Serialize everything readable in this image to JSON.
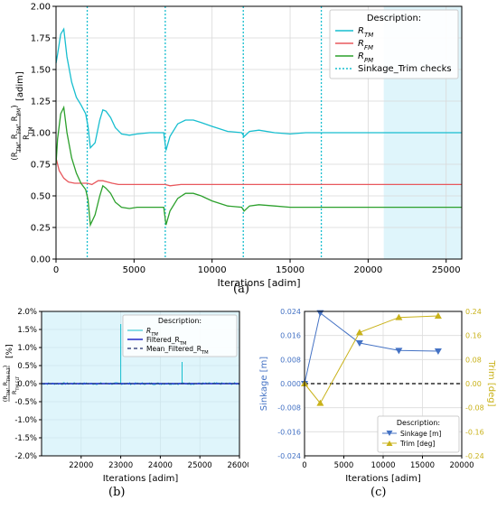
{
  "captions": {
    "a": "(a)",
    "b": "(b)",
    "c": "(c)"
  },
  "colors": {
    "rtm": "#17becf",
    "rfm": "#e8585d",
    "rpm": "#2ca02c",
    "check": "#17becf",
    "shade": "#dff5fb",
    "filtered": "#1f28c8",
    "mean": "#1a2a6c",
    "sinkage": "#4472c4",
    "trim": "#c9b21a"
  },
  "chart_data": [
    {
      "type": "line",
      "title": "",
      "xlabel": "Iterations [adim]",
      "ylabel": "(R_TM, R_FM, R_PM)/R_TM [adim]",
      "xlim": [
        0,
        26000
      ],
      "ylim": [
        0,
        2.0
      ],
      "xticks": [
        0,
        5000,
        10000,
        15000,
        20000,
        25000
      ],
      "yticks": [
        0,
        0.25,
        0.5,
        0.75,
        1.0,
        1.25,
        1.5,
        1.75,
        2.0
      ],
      "grid": true,
      "legend_placement": "top-right",
      "legend_title": "Description:",
      "shaded_x_range": [
        21000,
        26000
      ],
      "vlines": [
        2000,
        7000,
        12000,
        17000
      ],
      "series": [
        {
          "name": "R_TM",
          "x": [
            0,
            100,
            300,
            500,
            700,
            1000,
            1300,
            1600,
            1900,
            2050,
            2200,
            2500,
            2800,
            3000,
            3200,
            3500,
            3800,
            4200,
            4700,
            5200,
            6000,
            6900,
            7050,
            7300,
            7800,
            8300,
            8800,
            9300,
            10000,
            11000,
            11900,
            12050,
            12400,
            13000,
            14000,
            15000,
            16000,
            17000,
            20000,
            26000
          ],
          "y": [
            1.55,
            1.62,
            1.78,
            1.82,
            1.6,
            1.4,
            1.28,
            1.22,
            1.15,
            1.05,
            0.88,
            0.92,
            1.1,
            1.18,
            1.17,
            1.12,
            1.04,
            0.99,
            0.98,
            0.99,
            1.0,
            1.0,
            0.86,
            0.97,
            1.07,
            1.1,
            1.1,
            1.08,
            1.05,
            1.01,
            1.0,
            0.97,
            1.01,
            1.02,
            1.0,
            0.99,
            1.0,
            1.0,
            1.0,
            1.0
          ]
        },
        {
          "name": "R_FM",
          "x": [
            0,
            200,
            500,
            800,
            1200,
            1600,
            2000,
            2300,
            2700,
            3000,
            3300,
            3600,
            4000,
            5000,
            7000,
            7300,
            8000,
            10000,
            12000,
            15000,
            20000,
            26000
          ],
          "y": [
            0.8,
            0.7,
            0.64,
            0.61,
            0.6,
            0.6,
            0.6,
            0.59,
            0.62,
            0.62,
            0.61,
            0.6,
            0.59,
            0.59,
            0.59,
            0.58,
            0.59,
            0.59,
            0.59,
            0.59,
            0.59,
            0.59
          ],
          "note_unused": null
        },
        {
          "name": "R_PM",
          "x": [
            0,
            100,
            300,
            500,
            700,
            1000,
            1300,
            1600,
            1900,
            2050,
            2200,
            2500,
            2800,
            3000,
            3200,
            3500,
            3800,
            4200,
            4700,
            5200,
            6000,
            6900,
            7050,
            7300,
            7800,
            8300,
            8800,
            9300,
            10000,
            11000,
            11900,
            12050,
            12400,
            13000,
            14000,
            15000,
            16000,
            17000,
            20000,
            26000
          ],
          "y": [
            0.75,
            0.95,
            1.15,
            1.2,
            1.0,
            0.8,
            0.68,
            0.6,
            0.55,
            0.47,
            0.27,
            0.35,
            0.5,
            0.58,
            0.56,
            0.52,
            0.45,
            0.41,
            0.4,
            0.41,
            0.41,
            0.41,
            0.27,
            0.38,
            0.48,
            0.52,
            0.52,
            0.5,
            0.46,
            0.42,
            0.41,
            0.38,
            0.42,
            0.43,
            0.42,
            0.41,
            0.41,
            0.41,
            0.41,
            0.41
          ]
        }
      ],
      "legend_entries": [
        "R_TM",
        "R_FM",
        "R_PM",
        "Sinkage_Trim checks"
      ]
    },
    {
      "type": "line",
      "title": "",
      "xlabel": "Iterations [adim]",
      "ylabel": "(R_TM, R_TM-FLT)/R_TM-FLT [%]",
      "xlim": [
        21000,
        26000
      ],
      "ylim": [
        -2.0,
        2.0
      ],
      "xticks": [
        22000,
        23000,
        24000,
        25000,
        26000
      ],
      "yticks": [
        "-2.0%",
        "-1.5%",
        "-1.0%",
        "-0.5%",
        "0.0%",
        "0.5%",
        "1.0%",
        "1.5%",
        "2.0%"
      ],
      "grid": true,
      "legend_placement": "top-center",
      "legend_title": "Description:",
      "legend_entries": [
        "R_TM",
        "Filtered_R_TM",
        "Mean_Filtered_R_TM"
      ],
      "spikes": [
        {
          "x": 23000,
          "y": 1.65
        },
        {
          "x": 24550,
          "y": 0.6
        }
      ],
      "filtered_level": 0.0
    },
    {
      "type": "line",
      "title": "",
      "xlabel": "Iterations [adim]",
      "ylabel_left": "Sinkage [m]",
      "ylabel_right": "Trim [deg]",
      "xlim": [
        0,
        20000
      ],
      "ylim_left": [
        -0.024,
        0.024
      ],
      "ylim_right": [
        -0.24,
        0.24
      ],
      "xticks": [
        0,
        5000,
        10000,
        15000,
        20000
      ],
      "yticks_left": [
        "-0.024",
        "-0.016",
        "-0.008",
        "0.000",
        "0.008",
        "0.016",
        "0.024"
      ],
      "yticks_right": [
        "-0.24",
        "-0.16",
        "-0.08",
        "0.00",
        "0.08",
        "0.16",
        "0.24"
      ],
      "grid": true,
      "legend_placement": "bottom-right",
      "legend_title": "Description:",
      "series": [
        {
          "name": "Sinkage [m]",
          "x": [
            0,
            2000,
            7000,
            12000,
            17000
          ],
          "y": [
            0.0,
            0.0235,
            0.0135,
            0.011,
            0.0108
          ]
        },
        {
          "name": "Trim [deg]",
          "x": [
            0,
            2000,
            7000,
            12000,
            17000
          ],
          "y": [
            0.0,
            -0.065,
            0.17,
            0.22,
            0.225
          ]
        }
      ]
    }
  ]
}
